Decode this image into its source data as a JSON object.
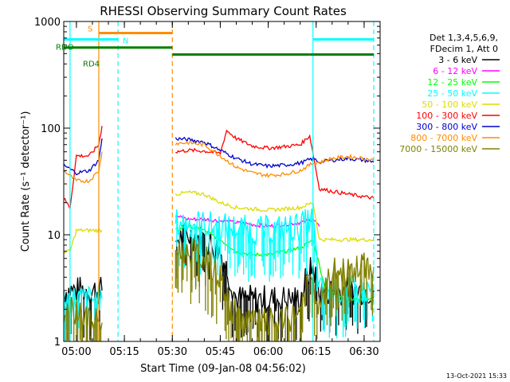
{
  "chart_data": {
    "type": "line",
    "title": "RHESSI Observing Summary Count Rates",
    "xlabel": "Start Time (09-Jan-08 04:56:02)",
    "ylabel": "Count Rate (s⁻¹ detector⁻¹)",
    "y_scale": "log",
    "ylim": [
      1,
      1000
    ],
    "xlim": [
      "04:56:02",
      "06:35:00"
    ],
    "x_ticks": [
      "05:00",
      "05:15",
      "05:30",
      "05:45",
      "06:00",
      "06:15",
      "06:30"
    ],
    "y_ticks": [
      "1",
      "10",
      "100",
      "1000"
    ],
    "legend_placement": "right",
    "legend_header": [
      "Det 1,3,4,5,6,9,",
      "FDecim 1, Att 0"
    ],
    "footer_date": "13-Oct-2021 15:33",
    "flags": [
      {
        "label": "S",
        "color": "#ff8c00",
        "level": 780,
        "segments": [
          [
            "05:07",
            "05:30"
          ]
        ]
      },
      {
        "label": "N",
        "color": "#00ffff",
        "level": 680,
        "segments": [
          [
            "04:56",
            "05:13"
          ],
          [
            "06:14",
            "06:33"
          ]
        ]
      },
      {
        "label": "RDO",
        "color": "#008000",
        "level": 570,
        "segments": [
          [
            "04:56",
            "05:30"
          ]
        ]
      },
      {
        "label": "RD4",
        "color": "#008000",
        "level": 490,
        "segments": [
          [
            "05:30",
            "05:47"
          ],
          [
            "05:47",
            "06:13"
          ],
          [
            "06:13",
            "06:33"
          ]
        ]
      }
    ],
    "vertical_markers": [
      {
        "time": "04:58",
        "color": "#00ffff",
        "style": "solid"
      },
      {
        "time": "05:07",
        "color": "#ff8c00",
        "style": "solid"
      },
      {
        "time": "05:13",
        "color": "#00ffff",
        "style": "dashed"
      },
      {
        "time": "05:30",
        "color": "#ff8c00",
        "style": "dashed"
      },
      {
        "time": "06:14",
        "color": "#00ffff",
        "style": "solid"
      },
      {
        "time": "06:33",
        "color": "#00ffff",
        "style": "dashed"
      }
    ],
    "data_gaps": [
      [
        "05:08",
        "05:31"
      ]
    ],
    "series": [
      {
        "name": "3 - 6 keV",
        "color": "#000000",
        "noisy": true,
        "points": [
          [
            "04:56",
            3
          ],
          [
            "05:00",
            3
          ],
          [
            "05:05",
            3
          ],
          [
            "05:08",
            3
          ],
          [
            "05:31",
            9
          ],
          [
            "05:35",
            10
          ],
          [
            "05:40",
            9
          ],
          [
            "05:45",
            7
          ],
          [
            "05:48",
            4
          ],
          [
            "05:50",
            2.5
          ],
          [
            "06:00",
            2.5
          ],
          [
            "06:10",
            2.5
          ],
          [
            "06:12",
            4
          ],
          [
            "06:14",
            5
          ],
          [
            "06:16",
            3
          ],
          [
            "06:20",
            3
          ],
          [
            "06:30",
            3
          ],
          [
            "06:33",
            3
          ]
        ]
      },
      {
        "name": "6 - 12 keV",
        "color": "#ff00ff",
        "noisy": false,
        "points": [
          [
            "05:31",
            15
          ],
          [
            "05:35",
            14
          ],
          [
            "05:40",
            14
          ],
          [
            "05:45",
            13.5
          ],
          [
            "05:50",
            13
          ],
          [
            "05:55",
            12.5
          ],
          [
            "06:00",
            12
          ],
          [
            "06:05",
            12.5
          ],
          [
            "06:10",
            13
          ],
          [
            "06:14",
            14
          ],
          [
            "06:16",
            12
          ]
        ]
      },
      {
        "name": "12 - 25 keV",
        "color": "#00ff00",
        "noisy": false,
        "points": [
          [
            "05:31",
            11
          ],
          [
            "05:35",
            12
          ],
          [
            "05:40",
            11
          ],
          [
            "05:45",
            9
          ],
          [
            "05:50",
            7
          ],
          [
            "05:55",
            6.5
          ],
          [
            "06:00",
            6.5
          ],
          [
            "06:05",
            7
          ],
          [
            "06:10",
            7.5
          ],
          [
            "06:14",
            9
          ],
          [
            "06:18",
            3
          ],
          [
            "06:25",
            2.5
          ],
          [
            "06:30",
            2.5
          ],
          [
            "06:33",
            2.5
          ]
        ]
      },
      {
        "name": "25 - 50 keV",
        "color": "#00ffff",
        "noisy": true,
        "points": [
          [
            "04:56",
            2.5
          ],
          [
            "05:00",
            2.5
          ],
          [
            "05:05",
            2.5
          ],
          [
            "05:08",
            2.5
          ],
          [
            "05:31",
            13
          ],
          [
            "05:35",
            13
          ],
          [
            "05:40",
            12.5
          ],
          [
            "05:45",
            12
          ],
          [
            "05:50",
            11.5
          ],
          [
            "05:55",
            11
          ],
          [
            "06:00",
            11
          ],
          [
            "06:05",
            11.5
          ],
          [
            "06:10",
            12
          ],
          [
            "06:14",
            14
          ],
          [
            "06:16",
            3
          ],
          [
            "06:25",
            3
          ],
          [
            "06:33",
            3
          ]
        ]
      },
      {
        "name": "50 - 100 keV",
        "color": "#dcdc00",
        "noisy": false,
        "points": [
          [
            "04:56",
            7
          ],
          [
            "04:58",
            7
          ],
          [
            "05:00",
            11
          ],
          [
            "05:05",
            11
          ],
          [
            "05:08",
            11
          ],
          [
            "05:31",
            24
          ],
          [
            "05:35",
            25
          ],
          [
            "05:40",
            24
          ],
          [
            "05:45",
            20
          ],
          [
            "05:50",
            18
          ],
          [
            "05:55",
            17.5
          ],
          [
            "06:00",
            17
          ],
          [
            "06:05",
            17.5
          ],
          [
            "06:10",
            18
          ],
          [
            "06:14",
            20
          ],
          [
            "06:16",
            9
          ],
          [
            "06:25",
            9
          ],
          [
            "06:33",
            9
          ]
        ]
      },
      {
        "name": "100 - 300 keV",
        "color": "#ff0000",
        "noisy": false,
        "points": [
          [
            "04:56",
            22
          ],
          [
            "04:58",
            18
          ],
          [
            "05:00",
            55
          ],
          [
            "05:04",
            55
          ],
          [
            "05:07",
            70
          ],
          [
            "05:08",
            105
          ],
          [
            "05:31",
            60
          ],
          [
            "05:35",
            62
          ],
          [
            "05:40",
            61
          ],
          [
            "05:45",
            58
          ],
          [
            "05:47",
            95
          ],
          [
            "05:50",
            80
          ],
          [
            "05:55",
            68
          ],
          [
            "06:00",
            65
          ],
          [
            "06:05",
            67
          ],
          [
            "06:10",
            70
          ],
          [
            "06:13",
            85
          ],
          [
            "06:16",
            27
          ],
          [
            "06:25",
            24
          ],
          [
            "06:33",
            22
          ]
        ]
      },
      {
        "name": "300 - 800 keV",
        "color": "#0000cd",
        "noisy": false,
        "points": [
          [
            "04:56",
            45
          ],
          [
            "05:00",
            38
          ],
          [
            "05:04",
            40
          ],
          [
            "05:07",
            50
          ],
          [
            "05:08",
            80
          ],
          [
            "05:31",
            80
          ],
          [
            "05:35",
            78
          ],
          [
            "05:40",
            74
          ],
          [
            "05:45",
            62
          ],
          [
            "05:50",
            52
          ],
          [
            "05:55",
            46
          ],
          [
            "06:00",
            44
          ],
          [
            "06:05",
            45
          ],
          [
            "06:10",
            47
          ],
          [
            "06:14",
            52
          ],
          [
            "06:16",
            48
          ],
          [
            "06:20",
            50
          ],
          [
            "06:25",
            52
          ],
          [
            "06:30",
            50
          ],
          [
            "06:33",
            48
          ]
        ]
      },
      {
        "name": "800 - 7000 keV",
        "color": "#ff8c00",
        "noisy": false,
        "points": [
          [
            "04:56",
            40
          ],
          [
            "05:00",
            32
          ],
          [
            "05:04",
            32
          ],
          [
            "05:07",
            40
          ],
          [
            "05:08",
            60
          ],
          [
            "05:31",
            72
          ],
          [
            "05:35",
            73
          ],
          [
            "05:40",
            70
          ],
          [
            "05:45",
            55
          ],
          [
            "05:50",
            43
          ],
          [
            "05:55",
            38
          ],
          [
            "06:00",
            36
          ],
          [
            "06:05",
            37
          ],
          [
            "06:10",
            40
          ],
          [
            "06:14",
            47
          ],
          [
            "06:16",
            48
          ],
          [
            "06:20",
            52
          ],
          [
            "06:25",
            54
          ],
          [
            "06:30",
            52
          ],
          [
            "06:33",
            50
          ]
        ]
      },
      {
        "name": "7000 - 15000 keV",
        "color": "#808000",
        "noisy": true,
        "points": [
          [
            "04:56",
            2
          ],
          [
            "05:00",
            2
          ],
          [
            "05:05",
            1.5
          ],
          [
            "05:08",
            1.5
          ],
          [
            "05:31",
            7
          ],
          [
            "05:35",
            7
          ],
          [
            "05:40",
            6
          ],
          [
            "05:45",
            4
          ],
          [
            "05:48",
            2
          ],
          [
            "05:55",
            1.5
          ],
          [
            "06:00",
            1.5
          ],
          [
            "06:05",
            1.5
          ],
          [
            "06:10",
            2
          ],
          [
            "06:13",
            4
          ],
          [
            "06:16",
            2
          ],
          [
            "06:20",
            4.5
          ],
          [
            "06:25",
            4.5
          ],
          [
            "06:30",
            5
          ],
          [
            "06:33",
            5
          ]
        ]
      }
    ]
  }
}
